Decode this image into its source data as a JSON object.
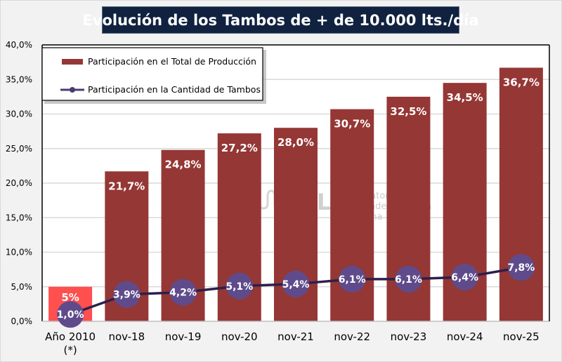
{
  "title": "Evolución de los Tambos de + de 10.000 lts./día",
  "colors": {
    "title_bg": "#10223f",
    "bar": "#953735",
    "bar_highlight": "#ff4f4f",
    "line": "#2e1f4b",
    "marker": "#5f4b8b",
    "background": "#f2f2f2",
    "plot_bg": "#ffffff",
    "grid": "#d9d9d9"
  },
  "watermark": {
    "brand": "OCLA",
    "line1": "Observatorio",
    "line2": "de la Cadena Láctea",
    "line3": "Argentina"
  },
  "chart_data": {
    "type": "bar",
    "title": "Evolución de los Tambos de + de 10.000 lts./día",
    "xlabel": "",
    "ylabel": "",
    "ylim": [
      0,
      40
    ],
    "yticks": [
      0,
      5,
      10,
      15,
      20,
      25,
      30,
      35,
      40
    ],
    "ytick_labels": [
      "0,0%",
      "5,0%",
      "10,0%",
      "15,0%",
      "20,0%",
      "25,0%",
      "30,0%",
      "35,0%",
      "40,0%"
    ],
    "grid": true,
    "legend_position": "top-left",
    "categories": [
      [
        "Año 2010",
        "(*)"
      ],
      [
        "nov-18"
      ],
      [
        "nov-19"
      ],
      [
        "nov-20"
      ],
      [
        "nov-21"
      ],
      [
        "nov-22"
      ],
      [
        "nov-23"
      ],
      [
        "nov-24"
      ],
      [
        "nov-25"
      ]
    ],
    "series": [
      {
        "name": "Participación en el Total de Producción",
        "type": "bar",
        "values": [
          5.0,
          21.7,
          24.8,
          27.2,
          28.0,
          30.7,
          32.5,
          34.5,
          36.7
        ],
        "labels": [
          "5%",
          "21,7%",
          "24,8%",
          "27,2%",
          "28,0%",
          "30,7%",
          "32,5%",
          "34,5%",
          "36,7%"
        ]
      },
      {
        "name": "Participación en la Cantidad de Tambos",
        "type": "line",
        "values": [
          1.0,
          3.9,
          4.2,
          5.1,
          5.4,
          6.1,
          6.1,
          6.4,
          7.8
        ],
        "labels": [
          "1,0%",
          "3,9%",
          "4,2%",
          "5,1%",
          "5,4%",
          "6,1%",
          "6,1%",
          "6,4%",
          "7,8%"
        ]
      }
    ]
  }
}
